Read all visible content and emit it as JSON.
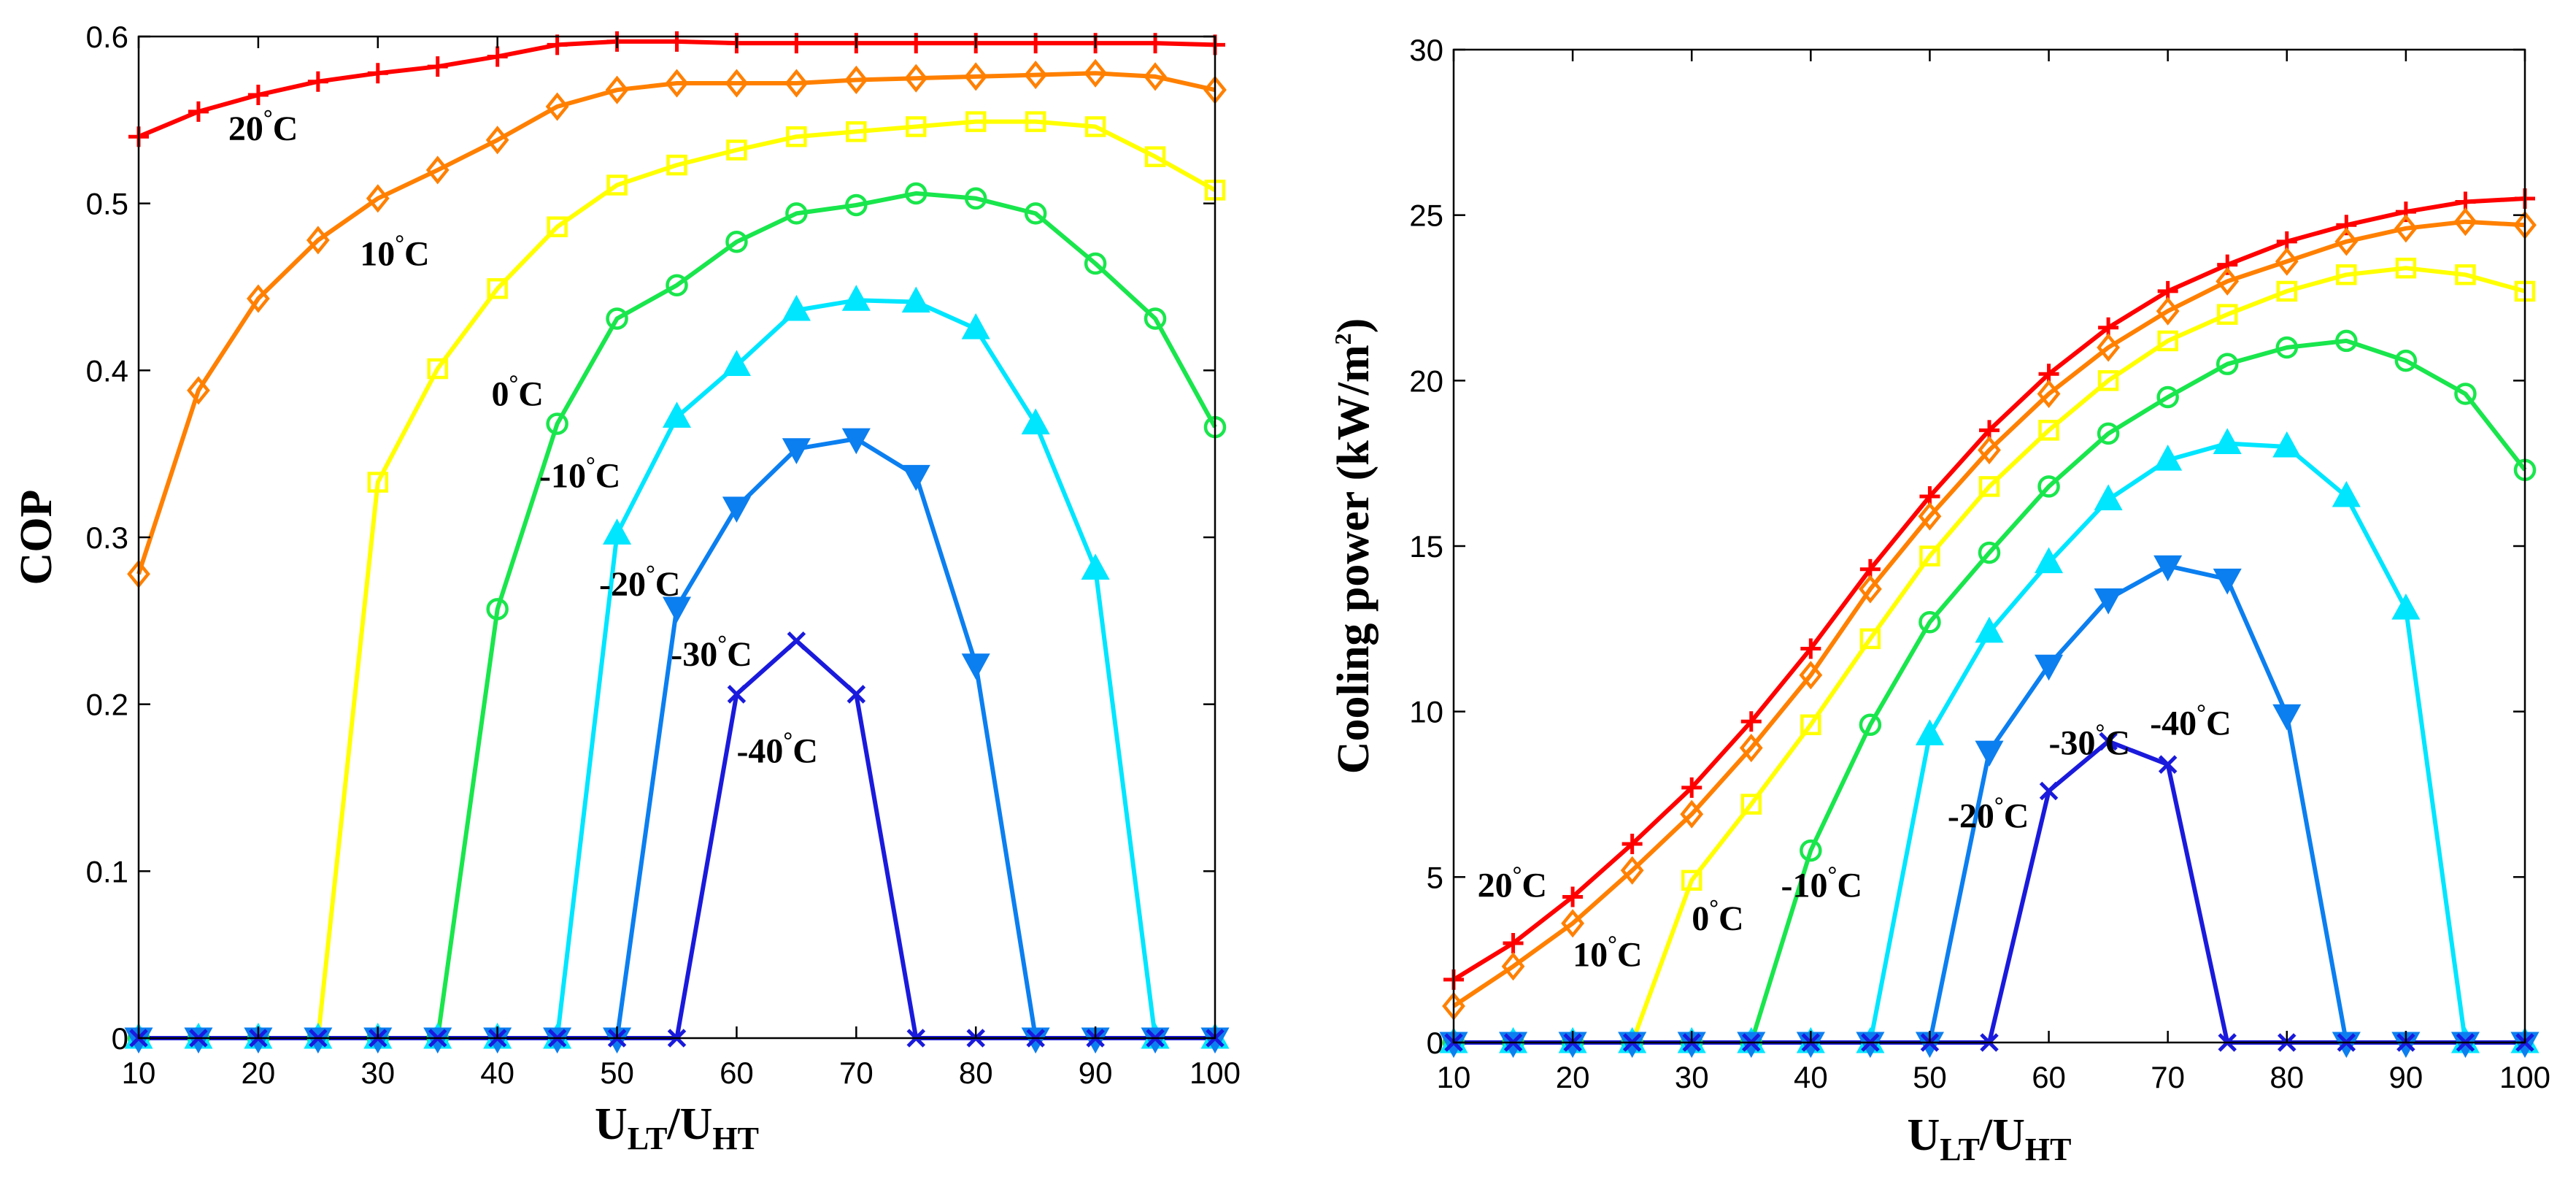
{
  "chart_data": [
    {
      "type": "line",
      "ylabel": "COP",
      "xlabel": {
        "main": "U",
        "sub1": "LT",
        "sep": "/U",
        "sub2": "HT"
      },
      "xlim": [
        10,
        100
      ],
      "ylim": [
        0,
        0.6
      ],
      "xticks": [
        "10",
        "20",
        "30",
        "40",
        "50",
        "60",
        "70",
        "80",
        "90",
        "100"
      ],
      "yticks": [
        "0",
        "0.1",
        "0.2",
        "0.3",
        "0.4",
        "0.5",
        "0.6"
      ],
      "x": [
        10,
        15,
        20,
        25,
        30,
        35,
        40,
        45,
        50,
        55,
        60,
        65,
        70,
        75,
        80,
        85,
        90,
        95,
        100
      ],
      "series": [
        {
          "name": "20°C",
          "color": "#ff0000",
          "marker": "plus",
          "values": [
            0.54,
            0.555,
            0.565,
            0.573,
            0.578,
            0.582,
            0.588,
            0.595,
            0.597,
            0.597,
            0.596,
            0.596,
            0.596,
            0.596,
            0.596,
            0.596,
            0.596,
            0.596,
            0.595
          ]
        },
        {
          "name": "10°C",
          "color": "#ff8000",
          "marker": "diamond",
          "values": [
            0.278,
            0.388,
            0.443,
            0.478,
            0.503,
            0.52,
            0.538,
            0.558,
            0.568,
            0.572,
            0.572,
            0.572,
            0.574,
            0.575,
            0.576,
            0.577,
            0.578,
            0.576,
            0.568
          ]
        },
        {
          "name": "0°C",
          "color": "#ffff00",
          "marker": "square",
          "values": [
            0,
            0,
            0,
            0,
            0.333,
            0.401,
            0.449,
            0.486,
            0.511,
            0.523,
            0.532,
            0.54,
            0.543,
            0.546,
            0.549,
            0.549,
            0.546,
            0.528,
            0.508
          ]
        },
        {
          "name": "-10°C",
          "color": "#19e64c",
          "marker": "circle",
          "values": [
            0,
            0,
            0,
            0,
            0,
            0,
            0.257,
            0.368,
            0.431,
            0.451,
            0.477,
            0.494,
            0.499,
            0.506,
            0.503,
            0.494,
            0.464,
            0.431,
            0.366
          ]
        },
        {
          "name": "-20°C",
          "color": "#00e6ff",
          "marker": "triangle-up",
          "values": [
            0,
            0,
            0,
            0,
            0,
            0,
            0,
            0,
            0.302,
            0.372,
            0.403,
            0.436,
            0.442,
            0.441,
            0.425,
            0.368,
            0.281,
            0,
            0
          ]
        },
        {
          "name": "-30°C",
          "color": "#0b7ff0",
          "marker": "triangle-down",
          "values": [
            0,
            0,
            0,
            0,
            0,
            0,
            0,
            0,
            0,
            0.258,
            0.318,
            0.353,
            0.359,
            0.337,
            0.224,
            0,
            0,
            0,
            0
          ]
        },
        {
          "name": "-40°C",
          "color": "#1a1adc",
          "marker": "x",
          "values": [
            0,
            0,
            0,
            0,
            0,
            0,
            0,
            0,
            0,
            0,
            0.206,
            0.238,
            0.206,
            0,
            0,
            0,
            0,
            0,
            0
          ]
        }
      ],
      "annotations": [
        {
          "label": "20",
          "unit": "C",
          "at": [
            17.5,
            0.538
          ]
        },
        {
          "label": "10",
          "unit": "C",
          "at": [
            28.5,
            0.463
          ]
        },
        {
          "label": "0",
          "unit": "C",
          "at": [
            39.5,
            0.379
          ]
        },
        {
          "label": "-10",
          "unit": "C",
          "at": [
            43.5,
            0.33
          ]
        },
        {
          "label": "-20",
          "unit": "C",
          "at": [
            48.5,
            0.265
          ]
        },
        {
          "label": "-30",
          "unit": "C",
          "at": [
            54.5,
            0.223
          ]
        },
        {
          "label": "-40",
          "unit": "C",
          "at": [
            60,
            0.165
          ]
        }
      ]
    },
    {
      "type": "line",
      "ylabel": {
        "main": "Cooling power (kW/m",
        "sup": "2",
        "end": ")"
      },
      "xlabel": {
        "main": "U",
        "sub1": "LT",
        "sep": "/U",
        "sub2": "HT"
      },
      "xlim": [
        10,
        100
      ],
      "ylim": [
        0,
        30
      ],
      "xticks": [
        "10",
        "20",
        "30",
        "40",
        "50",
        "60",
        "70",
        "80",
        "90",
        "100"
      ],
      "yticks": [
        "0",
        "5",
        "10",
        "15",
        "20",
        "25",
        "30"
      ],
      "x": [
        10,
        15,
        20,
        25,
        30,
        35,
        40,
        45,
        50,
        55,
        60,
        65,
        70,
        75,
        80,
        85,
        90,
        95,
        100
      ],
      "series": [
        {
          "name": "20°C",
          "color": "#ff0000",
          "marker": "plus",
          "values": [
            1.9,
            3.0,
            4.4,
            6.0,
            7.7,
            9.7,
            11.9,
            14.3,
            16.5,
            18.5,
            20.2,
            21.6,
            22.7,
            23.5,
            24.2,
            24.7,
            25.1,
            25.4,
            25.5
          ]
        },
        {
          "name": "10°C",
          "color": "#ff8000",
          "marker": "diamond",
          "values": [
            1.1,
            2.3,
            3.6,
            5.2,
            6.9,
            8.9,
            11.1,
            13.7,
            15.9,
            17.9,
            19.6,
            21.0,
            22.1,
            23.0,
            23.6,
            24.2,
            24.6,
            24.8,
            24.7
          ]
        },
        {
          "name": "0°C",
          "color": "#ffff00",
          "marker": "square",
          "values": [
            0,
            0,
            0,
            0,
            4.9,
            7.2,
            9.6,
            12.2,
            14.7,
            16.8,
            18.5,
            20.0,
            21.2,
            22.0,
            22.7,
            23.2,
            23.4,
            23.2,
            22.7
          ]
        },
        {
          "name": "-10°C",
          "color": "#19e64c",
          "marker": "circle",
          "values": [
            0,
            0,
            0,
            0,
            0,
            0,
            5.8,
            9.6,
            12.7,
            14.8,
            16.8,
            18.4,
            19.5,
            20.5,
            21.0,
            21.2,
            20.6,
            19.6,
            17.3
          ]
        },
        {
          "name": "-20°C",
          "color": "#00e6ff",
          "marker": "triangle-up",
          "values": [
            0,
            0,
            0,
            0,
            0,
            0,
            0,
            0,
            9.3,
            12.4,
            14.5,
            16.4,
            17.6,
            18.1,
            18.0,
            16.5,
            13.1,
            0,
            0
          ]
        },
        {
          "name": "-30°C",
          "color": "#0b7ff0",
          "marker": "triangle-down",
          "values": [
            0,
            0,
            0,
            0,
            0,
            0,
            0,
            0,
            0,
            8.8,
            11.4,
            13.4,
            14.4,
            14.0,
            9.9,
            0,
            0,
            0,
            0
          ]
        },
        {
          "name": "-40°C",
          "color": "#1a1adc",
          "marker": "x",
          "values": [
            0,
            0,
            0,
            0,
            0,
            0,
            0,
            0,
            0,
            0,
            7.6,
            9.1,
            8.4,
            0,
            0,
            0,
            0,
            0,
            0
          ]
        }
      ],
      "annotations": [
        {
          "label": "20",
          "unit": "C",
          "at": [
            12,
            4.4
          ]
        },
        {
          "label": "10",
          "unit": "C",
          "at": [
            20,
            2.3
          ]
        },
        {
          "label": "0",
          "unit": "C",
          "at": [
            30,
            3.4
          ]
        },
        {
          "label": "-10",
          "unit": "C",
          "at": [
            37.5,
            4.4
          ]
        },
        {
          "label": "-30",
          "unit": "C",
          "at": [
            60,
            8.7
          ]
        },
        {
          "label": "-40",
          "unit": "C",
          "at": [
            68.5,
            9.3
          ]
        },
        {
          "label": "-20",
          "unit": "C",
          "at": [
            51.5,
            6.5
          ]
        }
      ]
    }
  ]
}
